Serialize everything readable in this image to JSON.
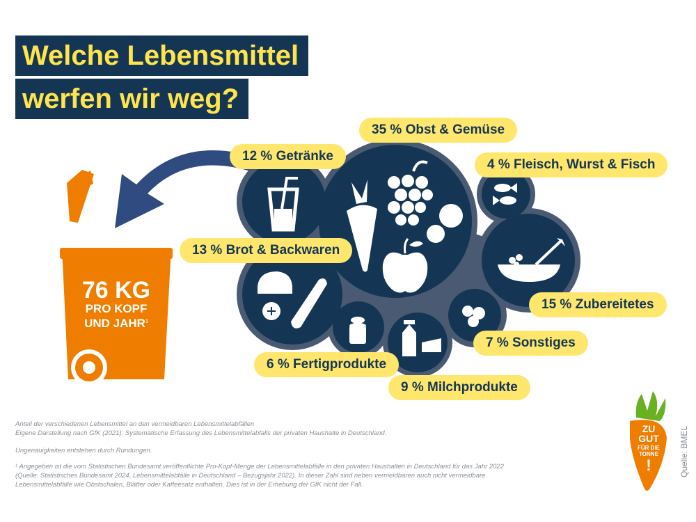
{
  "title": {
    "line1": "Welche Lebensmittel",
    "line2": "werfen wir weg?"
  },
  "bin": {
    "amount": "76 KG",
    "line1": "PRO KOPF",
    "line2": "UND JAHR",
    "footnote_marker": "1"
  },
  "categories": [
    {
      "label": "35 % Obst & Gemüse",
      "value": 35
    },
    {
      "label": "12 % Getränke",
      "value": 12
    },
    {
      "label": "4 % Fleisch, Wurst & Fisch",
      "value": 4
    },
    {
      "label": "13 % Brot & Backwaren",
      "value": 13
    },
    {
      "label": "15 % Zubereitetes",
      "value": 15
    },
    {
      "label": "7 % Sonstiges",
      "value": 7
    },
    {
      "label": "6 % Fertigprodukte",
      "value": 6
    },
    {
      "label": "9 % Milchprodukte",
      "value": 9
    }
  ],
  "footnotes": {
    "line1": "Anteil der verschiedenen Lebensmittel an den vermeidbaren Lebensmittelabfällen",
    "line2": "Eigene Darstellung nach GfK (2021): Systematische Erfassung des Lebensmittelabfalls der privaten Haushalte in Deutschland.",
    "line3": "Ungenauigkeiten entstehen durch Rundungen.",
    "note": "¹ Angegeben ist die vom Statistischen Bundesamt veröffentlichte Pro-Kopf-Menge der Lebensmittelabfälle in den privaten Haushalten in Deutschland für das Jahr 2022 (Quelle: Statistisches Bundesamt 2024, Lebensmittelabfälle in Deutschland – Bezugsjahr 2022). In dieser Zahl sind neben vermeidbaren auch nicht vermeidbare Lebensmittelabfälle wie Obstschalen, Blätter oder Kaffeesatz enthalten. Dies ist in der Erhebung der GfK nicht der Fall."
  },
  "source": "Quelle: BMEL",
  "logo": {
    "line1": "ZU",
    "line2": "GUT",
    "line3": "FÜR DIE",
    "line4": "TONNE",
    "line5": "!"
  },
  "colors": {
    "navy": "#143654",
    "yellow": "#ffe66d",
    "orange": "#ef7d00",
    "title_yellow": "#ffe44d",
    "cluster_border": "#4a5a72"
  }
}
